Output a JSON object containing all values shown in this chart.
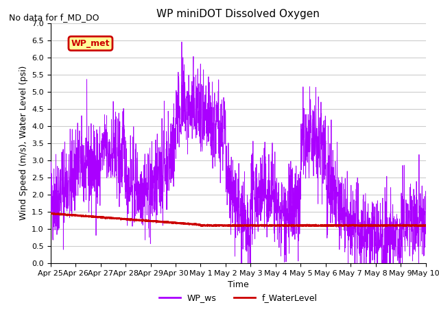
{
  "title": "WP miniDOT Dissolved Oxygen",
  "subtitle": "No data for f_MD_DO",
  "xlabel": "Time",
  "ylabel": "Wind Speed (m/s), Water Level (psi)",
  "ylim": [
    0.0,
    7.0
  ],
  "yticks": [
    0.0,
    0.5,
    1.0,
    1.5,
    2.0,
    2.5,
    3.0,
    3.5,
    4.0,
    4.5,
    5.0,
    5.5,
    6.0,
    6.5,
    7.0
  ],
  "line1_color": "#AA00FF",
  "line2_color": "#CC0000",
  "legend_label1": "WP_ws",
  "legend_label2": "f_WaterLevel",
  "legend_box_label": "WP_met",
  "legend_box_bg": "#FFFF99",
  "legend_box_edge": "#CC0000",
  "legend_box_text_color": "#CC0000",
  "background_color": "#ffffff",
  "grid_color": "#cccccc",
  "title_fontsize": 11,
  "subtitle_fontsize": 9,
  "axis_label_fontsize": 9,
  "tick_fontsize": 8,
  "legend_fontsize": 9
}
